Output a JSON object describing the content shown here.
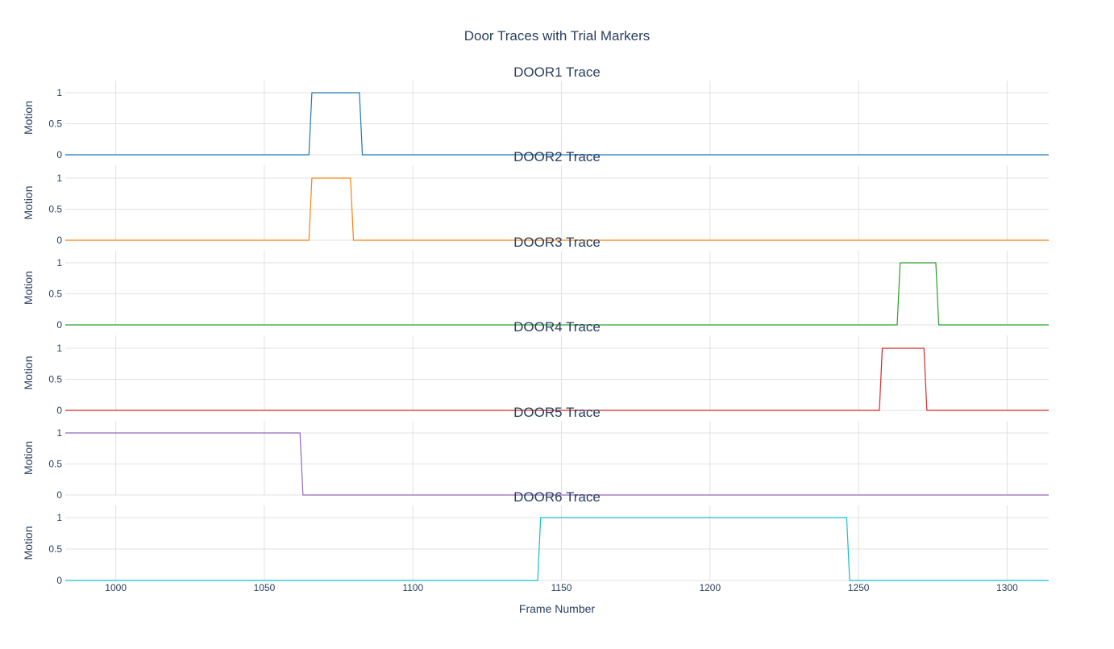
{
  "chart_data": {
    "type": "line",
    "title": "Door Traces with Trial Markers",
    "xlabel": "Frame Number",
    "ylabel": "Motion",
    "xlim": [
      983,
      1314
    ],
    "ylim": [
      0,
      1
    ],
    "x_ticks": [
      1000,
      1050,
      1100,
      1150,
      1200,
      1250,
      1300
    ],
    "y_ticks": [
      {
        "value": 0,
        "label": "0"
      },
      {
        "value": 0.5,
        "label": "0.5"
      },
      {
        "value": 1,
        "label": "1"
      }
    ],
    "grid": true,
    "series": [
      {
        "name": "DOOR1 Trace",
        "color": "#1f77b4",
        "points": [
          [
            983,
            0
          ],
          [
            1065,
            0
          ],
          [
            1066,
            1
          ],
          [
            1082,
            1
          ],
          [
            1083,
            0
          ],
          [
            1314,
            0
          ]
        ]
      },
      {
        "name": "DOOR2 Trace",
        "color": "#ff7f0e",
        "points": [
          [
            983,
            0
          ],
          [
            1065,
            0
          ],
          [
            1066,
            1
          ],
          [
            1079,
            1
          ],
          [
            1080,
            0
          ],
          [
            1314,
            0
          ]
        ]
      },
      {
        "name": "DOOR3 Trace",
        "color": "#2ca02c",
        "points": [
          [
            983,
            0
          ],
          [
            1263,
            0
          ],
          [
            1264,
            1
          ],
          [
            1276,
            1
          ],
          [
            1277,
            0
          ],
          [
            1314,
            0
          ]
        ]
      },
      {
        "name": "DOOR4 Trace",
        "color": "#d62728",
        "points": [
          [
            983,
            0
          ],
          [
            1257,
            0
          ],
          [
            1258,
            1
          ],
          [
            1272,
            1
          ],
          [
            1273,
            0
          ],
          [
            1314,
            0
          ]
        ]
      },
      {
        "name": "DOOR5 Trace",
        "color": "#9467bd",
        "points": [
          [
            983,
            1
          ],
          [
            1062,
            1
          ],
          [
            1063,
            0
          ],
          [
            1314,
            0
          ]
        ]
      },
      {
        "name": "DOOR6 Trace",
        "color": "#17becf",
        "points": [
          [
            983,
            0
          ],
          [
            1142,
            0
          ],
          [
            1143,
            1
          ],
          [
            1246,
            1
          ],
          [
            1247,
            0
          ],
          [
            1314,
            0
          ]
        ]
      }
    ]
  }
}
